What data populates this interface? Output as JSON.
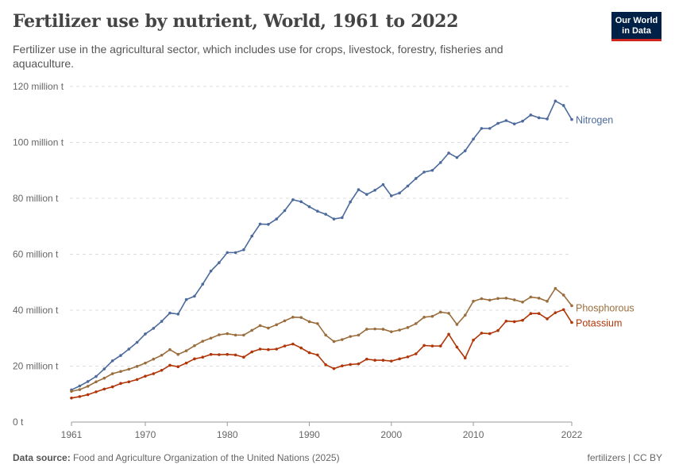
{
  "title": "Fertilizer use by nutrient, World, 1961 to 2022",
  "subtitle": "Fertilizer use in the agricultural sector, which includes use for crops, livestock, forestry, fisheries and aquaculture.",
  "logo": {
    "line1": "Our World",
    "line2": "in Data",
    "bg": "#002147",
    "accent": "#ce261e"
  },
  "footer": {
    "source_label": "Data source:",
    "source": "Food and Agriculture Organization of the United Nations (2025)",
    "license": "fertilizers | CC BY"
  },
  "chart_data": {
    "type": "line",
    "title": "Fertilizer use by nutrient, World, 1961 to 2022",
    "xlim": [
      1961,
      2022
    ],
    "ylim": [
      0,
      120
    ],
    "x_ticks": [
      "1961",
      "1970",
      "1980",
      "1990",
      "2000",
      "2010",
      "2022"
    ],
    "y_ticks": [
      "0 t",
      "20 million t",
      "40 million t",
      "60 million t",
      "80 million t",
      "100 million t",
      "120 million t"
    ],
    "y_tick_values": [
      0,
      20,
      40,
      60,
      80,
      100,
      120
    ],
    "grid": "horizontal dashed",
    "legend": "inline labels at line ends (right)",
    "unit": "million t",
    "x_start": 1961,
    "series": [
      {
        "name": "Nitrogen",
        "color": "#4c6a9c",
        "values": [
          11.5,
          12.9,
          14.5,
          16.3,
          19,
          21.9,
          23.8,
          26.1,
          28.5,
          31.5,
          33.5,
          36,
          39,
          38.6,
          43.8,
          45,
          49.3,
          54,
          57,
          60.6,
          60.6,
          61.6,
          66.5,
          70.8,
          70.7,
          72.6,
          75.6,
          79.5,
          78.8,
          77,
          75.4,
          74.3,
          72.6,
          73.1,
          78.7,
          83.1,
          81.4,
          82.9,
          84.9,
          80.9,
          81.9,
          84.4,
          87.1,
          89.4,
          90,
          92.8,
          96.2,
          94.6,
          97,
          101.2,
          105,
          105,
          106.8,
          107.8,
          106.6,
          107.6,
          109.8,
          108.8,
          108.4,
          114.8,
          113.2,
          108.2
        ]
      },
      {
        "name": "Phosphorous",
        "color": "#9a6d3c",
        "values": [
          11,
          11.6,
          12.8,
          14.4,
          15.7,
          17.3,
          18.1,
          18.9,
          19.9,
          21.1,
          22.5,
          23.9,
          25.9,
          24.2,
          25.5,
          27.3,
          28.9,
          30,
          31.2,
          31.6,
          31.1,
          31.1,
          32.8,
          34.5,
          33.6,
          34.8,
          36.2,
          37.5,
          37.4,
          35.9,
          35.2,
          31.1,
          28.8,
          29.5,
          30.6,
          31.1,
          33.2,
          33.3,
          33.2,
          32.3,
          32.9,
          33.8,
          35.2,
          37.5,
          37.8,
          39.3,
          38.9,
          34.9,
          38.2,
          43.2,
          44.1,
          43.6,
          44.2,
          44.3,
          43.7,
          42.9,
          44.7,
          44.3,
          43.2,
          47.8,
          45.4,
          41.6
        ]
      },
      {
        "name": "Potassium",
        "color": "#b13507",
        "values": [
          8.6,
          9.1,
          9.8,
          10.8,
          11.8,
          12.6,
          13.8,
          14.4,
          15.2,
          16.4,
          17.3,
          18.5,
          20.3,
          19.8,
          21.1,
          22.6,
          23.2,
          24.2,
          24.1,
          24.2,
          24,
          23.2,
          25.1,
          26.1,
          25.9,
          26.1,
          27.2,
          27.9,
          26.5,
          24.8,
          24,
          20.5,
          19.1,
          20.1,
          20.6,
          20.8,
          22.5,
          22.1,
          22.1,
          21.8,
          22.6,
          23.3,
          24.4,
          27.4,
          27.2,
          27.2,
          31.4,
          26.8,
          22.9,
          29.3,
          31.8,
          31.6,
          32.7,
          36.1,
          35.9,
          36.4,
          38.8,
          38.8,
          36.9,
          39.1,
          40.2,
          35.6
        ]
      }
    ]
  }
}
